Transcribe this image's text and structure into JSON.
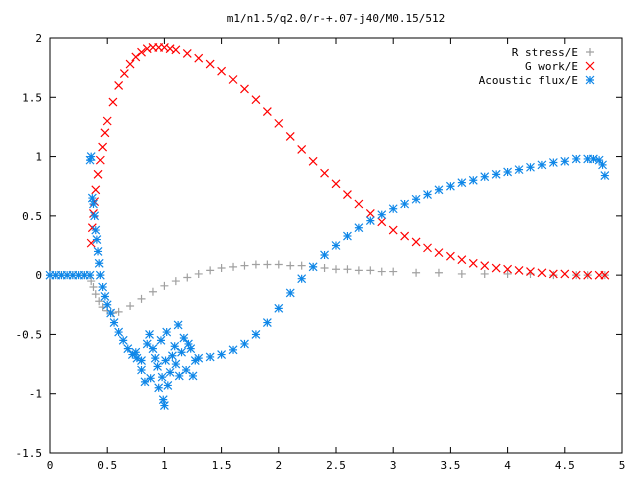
{
  "chart_data": {
    "type": "scatter",
    "title": "m1/n1.5/q2.0/r-+.07-j40/M0.15/512",
    "xlim": [
      0,
      5
    ],
    "ylim": [
      -1.5,
      2
    ],
    "xticks": [
      "0",
      "0.5",
      "1",
      "1.5",
      "2",
      "2.5",
      "3",
      "3.5",
      "4",
      "4.5",
      "5"
    ],
    "yticks": [
      "-1.5",
      "-1",
      "-0.5",
      "0",
      "0.5",
      "1",
      "1.5",
      "2"
    ],
    "grid": false,
    "legend_position": "top-right",
    "series": [
      {
        "name": "R stress/E",
        "marker": "plus",
        "color": "#a0a0a0",
        "points": [
          [
            0.0,
            0.0
          ],
          [
            0.1,
            0.0
          ],
          [
            0.2,
            0.0
          ],
          [
            0.3,
            0.0
          ],
          [
            0.36,
            -0.05
          ],
          [
            0.38,
            -0.1
          ],
          [
            0.4,
            -0.16
          ],
          [
            0.43,
            -0.22
          ],
          [
            0.46,
            -0.27
          ],
          [
            0.5,
            -0.3
          ],
          [
            0.55,
            -0.32
          ],
          [
            0.6,
            -0.31
          ],
          [
            0.7,
            -0.26
          ],
          [
            0.8,
            -0.2
          ],
          [
            0.9,
            -0.14
          ],
          [
            1.0,
            -0.09
          ],
          [
            1.1,
            -0.05
          ],
          [
            1.2,
            -0.02
          ],
          [
            1.3,
            0.01
          ],
          [
            1.4,
            0.04
          ],
          [
            1.5,
            0.06
          ],
          [
            1.6,
            0.07
          ],
          [
            1.7,
            0.08
          ],
          [
            1.8,
            0.09
          ],
          [
            1.9,
            0.09
          ],
          [
            2.0,
            0.09
          ],
          [
            2.1,
            0.08
          ],
          [
            2.2,
            0.08
          ],
          [
            2.3,
            0.07
          ],
          [
            2.4,
            0.06
          ],
          [
            2.5,
            0.05
          ],
          [
            2.6,
            0.05
          ],
          [
            2.7,
            0.04
          ],
          [
            2.8,
            0.04
          ],
          [
            2.9,
            0.03
          ],
          [
            3.0,
            0.03
          ],
          [
            3.2,
            0.02
          ],
          [
            3.4,
            0.02
          ],
          [
            3.6,
            0.01
          ],
          [
            3.8,
            0.01
          ],
          [
            4.0,
            0.01
          ],
          [
            4.2,
            0.01
          ],
          [
            4.4,
            0.0
          ],
          [
            4.6,
            0.0
          ],
          [
            4.7,
            0.0
          ],
          [
            4.85,
            0.0
          ]
        ]
      },
      {
        "name": "G work/E",
        "marker": "cross",
        "color": "#ff0000",
        "points": [
          [
            0.36,
            0.27
          ],
          [
            0.37,
            0.4
          ],
          [
            0.38,
            0.52
          ],
          [
            0.39,
            0.62
          ],
          [
            0.4,
            0.72
          ],
          [
            0.42,
            0.85
          ],
          [
            0.44,
            0.97
          ],
          [
            0.46,
            1.08
          ],
          [
            0.48,
            1.2
          ],
          [
            0.5,
            1.3
          ],
          [
            0.55,
            1.46
          ],
          [
            0.6,
            1.6
          ],
          [
            0.65,
            1.7
          ],
          [
            0.7,
            1.78
          ],
          [
            0.75,
            1.84
          ],
          [
            0.8,
            1.88
          ],
          [
            0.85,
            1.91
          ],
          [
            0.9,
            1.92
          ],
          [
            0.95,
            1.92
          ],
          [
            1.0,
            1.92
          ],
          [
            1.05,
            1.91
          ],
          [
            1.1,
            1.9
          ],
          [
            1.2,
            1.87
          ],
          [
            1.3,
            1.83
          ],
          [
            1.4,
            1.78
          ],
          [
            1.5,
            1.72
          ],
          [
            1.6,
            1.65
          ],
          [
            1.7,
            1.57
          ],
          [
            1.8,
            1.48
          ],
          [
            1.9,
            1.38
          ],
          [
            2.0,
            1.28
          ],
          [
            2.1,
            1.17
          ],
          [
            2.2,
            1.06
          ],
          [
            2.3,
            0.96
          ],
          [
            2.4,
            0.86
          ],
          [
            2.5,
            0.77
          ],
          [
            2.6,
            0.68
          ],
          [
            2.7,
            0.6
          ],
          [
            2.8,
            0.52
          ],
          [
            2.9,
            0.45
          ],
          [
            3.0,
            0.38
          ],
          [
            3.1,
            0.33
          ],
          [
            3.2,
            0.28
          ],
          [
            3.3,
            0.23
          ],
          [
            3.4,
            0.19
          ],
          [
            3.5,
            0.16
          ],
          [
            3.6,
            0.13
          ],
          [
            3.7,
            0.1
          ],
          [
            3.8,
            0.08
          ],
          [
            3.9,
            0.06
          ],
          [
            4.0,
            0.05
          ],
          [
            4.1,
            0.04
          ],
          [
            4.2,
            0.03
          ],
          [
            4.3,
            0.02
          ],
          [
            4.4,
            0.01
          ],
          [
            4.5,
            0.01
          ],
          [
            4.6,
            0.0
          ],
          [
            4.7,
            0.0
          ],
          [
            4.8,
            0.0
          ],
          [
            4.85,
            0.0
          ]
        ]
      },
      {
        "name": "Acoustic flux/E",
        "marker": "star",
        "color": "#0f87e8",
        "points": [
          [
            0.0,
            0.0
          ],
          [
            0.05,
            0.0
          ],
          [
            0.1,
            0.0
          ],
          [
            0.15,
            0.0
          ],
          [
            0.2,
            0.0
          ],
          [
            0.25,
            0.0
          ],
          [
            0.3,
            0.0
          ],
          [
            0.35,
            0.0
          ],
          [
            0.35,
            0.97
          ],
          [
            0.36,
            1.0
          ],
          [
            0.37,
            0.65
          ],
          [
            0.38,
            0.6
          ],
          [
            0.39,
            0.5
          ],
          [
            0.4,
            0.38
          ],
          [
            0.41,
            0.3
          ],
          [
            0.42,
            0.2
          ],
          [
            0.43,
            0.1
          ],
          [
            0.44,
            0.0
          ],
          [
            0.46,
            -0.1
          ],
          [
            0.48,
            -0.18
          ],
          [
            0.5,
            -0.25
          ],
          [
            0.53,
            -0.32
          ],
          [
            0.56,
            -0.4
          ],
          [
            0.6,
            -0.48
          ],
          [
            0.64,
            -0.55
          ],
          [
            0.68,
            -0.62
          ],
          [
            0.72,
            -0.67
          ],
          [
            0.76,
            -0.7
          ],
          [
            0.8,
            -0.72
          ],
          [
            0.75,
            -0.65
          ],
          [
            0.8,
            -0.8
          ],
          [
            0.83,
            -0.9
          ],
          [
            0.85,
            -0.58
          ],
          [
            0.87,
            -0.5
          ],
          [
            0.88,
            -0.87
          ],
          [
            0.9,
            -0.62
          ],
          [
            0.92,
            -0.7
          ],
          [
            0.94,
            -0.77
          ],
          [
            0.95,
            -0.95
          ],
          [
            0.97,
            -0.55
          ],
          [
            0.98,
            -0.86
          ],
          [
            0.99,
            -1.05
          ],
          [
            1.0,
            -1.1
          ],
          [
            1.01,
            -0.72
          ],
          [
            1.02,
            -0.48
          ],
          [
            1.03,
            -0.93
          ],
          [
            1.05,
            -0.82
          ],
          [
            1.07,
            -0.68
          ],
          [
            1.09,
            -0.6
          ],
          [
            1.1,
            -0.75
          ],
          [
            1.12,
            -0.42
          ],
          [
            1.13,
            -0.85
          ],
          [
            1.15,
            -0.65
          ],
          [
            1.17,
            -0.53
          ],
          [
            1.19,
            -0.8
          ],
          [
            1.21,
            -0.58
          ],
          [
            1.23,
            -0.62
          ],
          [
            1.25,
            -0.85
          ],
          [
            1.27,
            -0.72
          ],
          [
            1.3,
            -0.7
          ],
          [
            1.4,
            -0.69
          ],
          [
            1.5,
            -0.67
          ],
          [
            1.6,
            -0.63
          ],
          [
            1.7,
            -0.58
          ],
          [
            1.8,
            -0.5
          ],
          [
            1.9,
            -0.4
          ],
          [
            2.0,
            -0.28
          ],
          [
            2.1,
            -0.15
          ],
          [
            2.2,
            -0.03
          ],
          [
            2.3,
            0.07
          ],
          [
            2.4,
            0.17
          ],
          [
            2.5,
            0.25
          ],
          [
            2.6,
            0.33
          ],
          [
            2.7,
            0.4
          ],
          [
            2.8,
            0.46
          ],
          [
            2.9,
            0.51
          ],
          [
            3.0,
            0.56
          ],
          [
            3.1,
            0.6
          ],
          [
            3.2,
            0.64
          ],
          [
            3.3,
            0.68
          ],
          [
            3.4,
            0.72
          ],
          [
            3.5,
            0.75
          ],
          [
            3.6,
            0.78
          ],
          [
            3.7,
            0.8
          ],
          [
            3.8,
            0.83
          ],
          [
            3.9,
            0.85
          ],
          [
            4.0,
            0.87
          ],
          [
            4.1,
            0.89
          ],
          [
            4.2,
            0.91
          ],
          [
            4.3,
            0.93
          ],
          [
            4.4,
            0.95
          ],
          [
            4.5,
            0.96
          ],
          [
            4.6,
            0.98
          ],
          [
            4.7,
            0.98
          ],
          [
            4.75,
            0.98
          ],
          [
            4.8,
            0.97
          ],
          [
            4.83,
            0.93
          ],
          [
            4.85,
            0.84
          ]
        ]
      }
    ]
  }
}
